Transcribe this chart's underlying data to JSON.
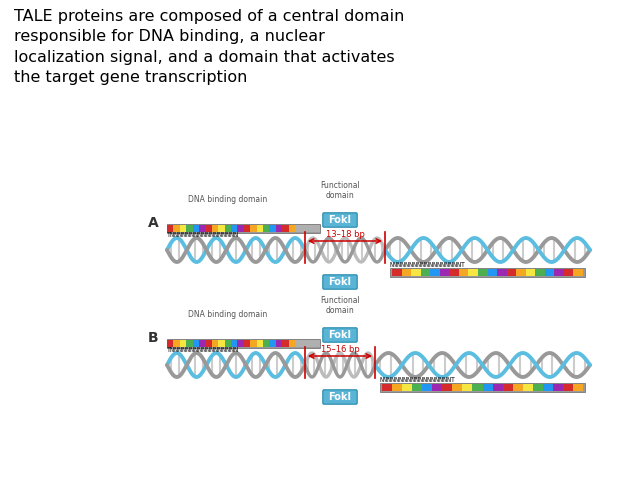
{
  "title_text": "TALE proteins are composed of a central domain\nresponsible for DNA binding, a nuclear\nlocalization signal, and a domain that activates\nthe target gene transcription",
  "title_fontsize": 11.5,
  "bg_color": "#ffffff",
  "label_A": "A",
  "label_B": "B",
  "dna_binding_label": "DNA binding domain",
  "functional_label": "Functional\ndomain",
  "fokI_label": "FokI",
  "bp_label_A": "13–18 bp",
  "bp_label_B": "15–16 bp",
  "colors_stripe": [
    "#d62b2b",
    "#f5a623",
    "#f5e642",
    "#4caf50",
    "#2196f3",
    "#9c27b0"
  ],
  "color_fokI_box": "#5ab4d6",
  "color_fokI_text": "#ffffff",
  "color_dna_blue": "#5bbde0",
  "color_dna_gray": "#999999",
  "color_red_line": "#cc0000",
  "color_label_text": "#555555",
  "color_gray_backbone": "#9a9a9a",
  "color_gray_connector": "#b0b0b0"
}
